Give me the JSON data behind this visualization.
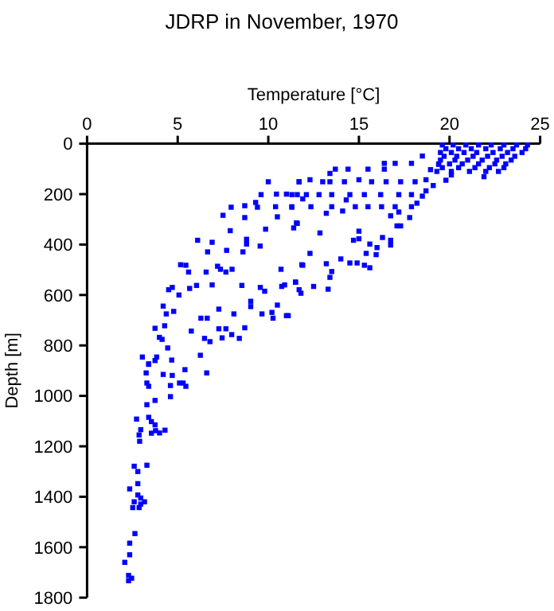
{
  "chart_data": {
    "type": "scatter",
    "title": "JDRP in November, 1970",
    "xlabel": "Temperature [°C]",
    "ylabel": "Depth [m]",
    "xlim": [
      0,
      25
    ],
    "xticks": [
      0,
      5,
      10,
      15,
      20,
      25
    ],
    "ylim": [
      1800,
      0
    ],
    "yticks": [
      0,
      200,
      400,
      600,
      800,
      1000,
      1200,
      1400,
      1600,
      1800
    ],
    "marker": "square",
    "series": [
      {
        "color": "#0000ff",
        "x": [
          3.05,
          3.84,
          3.75,
          4.67,
          6.25,
          3.4,
          3.26,
          4.2,
          4.7,
          5.4,
          6.6,
          3.3,
          3.4,
          4.6,
          5.1,
          5.3,
          5.45,
          4.6,
          3.75,
          3.3,
          2.73,
          3.4,
          3.55,
          3.75,
          2.96,
          3.78,
          3.55,
          4.0,
          4.3,
          2.87,
          2.9,
          2.6,
          3.3,
          2.8,
          2.8,
          2.35,
          2.8,
          2.96,
          2.6,
          2.96,
          3.17,
          2.52,
          2.87,
          2.64,
          2.35,
          2.35,
          2.08,
          2.29,
          2.46,
          2.29,
          10.0,
          11.7,
          9.6,
          10.45,
          11.0,
          11.6,
          7.95,
          8.7,
          9.4,
          10.4,
          11.3,
          9.3,
          7.5,
          8.7,
          10.5,
          7.9,
          9.85,
          11.6,
          11.4,
          6.1,
          6.9,
          8.8,
          8.8,
          9.55,
          6.65,
          7.7,
          8.6,
          5.16,
          5.45,
          5.6,
          6.57,
          7.2,
          7.36,
          7.66,
          8.0,
          10.7,
          11.85,
          4.5,
          4.7,
          5.07,
          5.66,
          6.04,
          6.9,
          8.54,
          9.56,
          9.8,
          10.74,
          10.9,
          11.5,
          11.7,
          4.2,
          4.37,
          4.78,
          7.27,
          8.1,
          9.03,
          9.03,
          9.65,
          10.2,
          10.26,
          10.5,
          11.0,
          6.28,
          6.63,
          3.75,
          4.28,
          5.75,
          3.99,
          4.14,
          4.45,
          6.48,
          6.78,
          7.27,
          7.66,
          7.45,
          7.98,
          8.4,
          8.7,
          3.4,
          13.7,
          14.4,
          15.5,
          16.4,
          17.0,
          16.4,
          13.4,
          11.7,
          12.3,
          13.0,
          13.4,
          14.2,
          15.0,
          15.7,
          16.5,
          17.3,
          18.1,
          18.7,
          19.8,
          20.1,
          11.3,
          12.1,
          12.8,
          13.5,
          14.5,
          15.3,
          16.2,
          17.2,
          17.9,
          18.7,
          19.1,
          11.9,
          14.3,
          11.3,
          12.35,
          13.5,
          14.8,
          15.5,
          16.25,
          17.0,
          17.9,
          18.2,
          18.5,
          13.2,
          14.1,
          16.75,
          17.2,
          17.8,
          11.55,
          12.85,
          15.0,
          17.1,
          17.3,
          16.3,
          14.7,
          15.0,
          15.6,
          16.75,
          16.75,
          16.0,
          15.95,
          15.4,
          12.3,
          14.0,
          13.2,
          11.9,
          14.5,
          14.9,
          15.3,
          15.6,
          13.5,
          13.4,
          11.5,
          12.5,
          13.3,
          11.8,
          11.1,
          18.5,
          17.9,
          18.95,
          19.4,
          21.9,
          19.6,
          20.2,
          20.9,
          21.6,
          22.3,
          23.0,
          23.7,
          24.3,
          19.8,
          20.5,
          21.2,
          22.0,
          22.8,
          23.5,
          24.2,
          19.5,
          20.1,
          20.8,
          21.5,
          22.4,
          23.2,
          24.0,
          19.7,
          20.4,
          21.3,
          22.1,
          22.9,
          23.6,
          19.5,
          20.3,
          21.0,
          21.8,
          22.6,
          23.4,
          19.4,
          20.0,
          20.7,
          21.6,
          22.5,
          23.1,
          19.6,
          20.5,
          21.4,
          22.2,
          23.0,
          19.3,
          20.1,
          21.1,
          22.0,
          22.7
        ],
        "values": [
          846,
          846,
          860,
          858,
          839,
          875,
          909,
          915,
          919,
          896,
          909,
          949,
          962,
          959,
          949,
          949,
          962,
          1003,
          1018,
          1035,
          1092,
          1085,
          1102,
          1115,
          1134,
          1138,
          1148,
          1147,
          1136,
          1155,
          1180,
          1279,
          1275,
          1300,
          1348,
          1369,
          1393,
          1405,
          1420,
          1429,
          1420,
          1443,
          1443,
          1546,
          1584,
          1630,
          1660,
          1712,
          1723,
          1733,
          151,
          151,
          202,
          200,
          200,
          202,
          252,
          246,
          252,
          250,
          252,
          233,
          284,
          293,
          290,
          345,
          339,
          316,
          334,
          383,
          391,
          379,
          398,
          406,
          429,
          423,
          429,
          480,
          482,
          509,
          509,
          486,
          498,
          509,
          498,
          498,
          480,
          579,
          570,
          600,
          574,
          562,
          560,
          562,
          570,
          585,
          566,
          560,
          549,
          579,
          644,
          675,
          665,
          656,
          675,
          625,
          646,
          675,
          669,
          692,
          640,
          682,
          692,
          692,
          732,
          722,
          743,
          768,
          776,
          810,
          772,
          785,
          734,
          734,
          770,
          757,
          772,
          730,
          873,
          101,
          101,
          101,
          78,
          78,
          101,
          118,
          151,
          143,
          151,
          151,
          151,
          143,
          151,
          151,
          151,
          151,
          143,
          145,
          124,
          202,
          202,
          202,
          202,
          202,
          202,
          202,
          202,
          202,
          187,
          166,
          219,
          223,
          250,
          250,
          250,
          250,
          250,
          250,
          250,
          250,
          236,
          208,
          276,
          267,
          286,
          271,
          293,
          314,
          354,
          347,
          326,
          326,
          372,
          383,
          377,
          398,
          383,
          402,
          412,
          440,
          435,
          435,
          457,
          476,
          482,
          473,
          473,
          482,
          492,
          507,
          530,
          549,
          566,
          577,
          593,
          682,
          49,
          78,
          103,
          82,
          131,
          5,
          5,
          5,
          5,
          5,
          5,
          5,
          5,
          20,
          20,
          20,
          20,
          20,
          20,
          20,
          35,
          35,
          35,
          35,
          35,
          35,
          35,
          50,
          50,
          50,
          50,
          50,
          50,
          65,
          65,
          65,
          65,
          65,
          65,
          80,
          80,
          80,
          80,
          80,
          80,
          95,
          95,
          95,
          95,
          95,
          110,
          110,
          110,
          110,
          110
        ]
      }
    ]
  }
}
